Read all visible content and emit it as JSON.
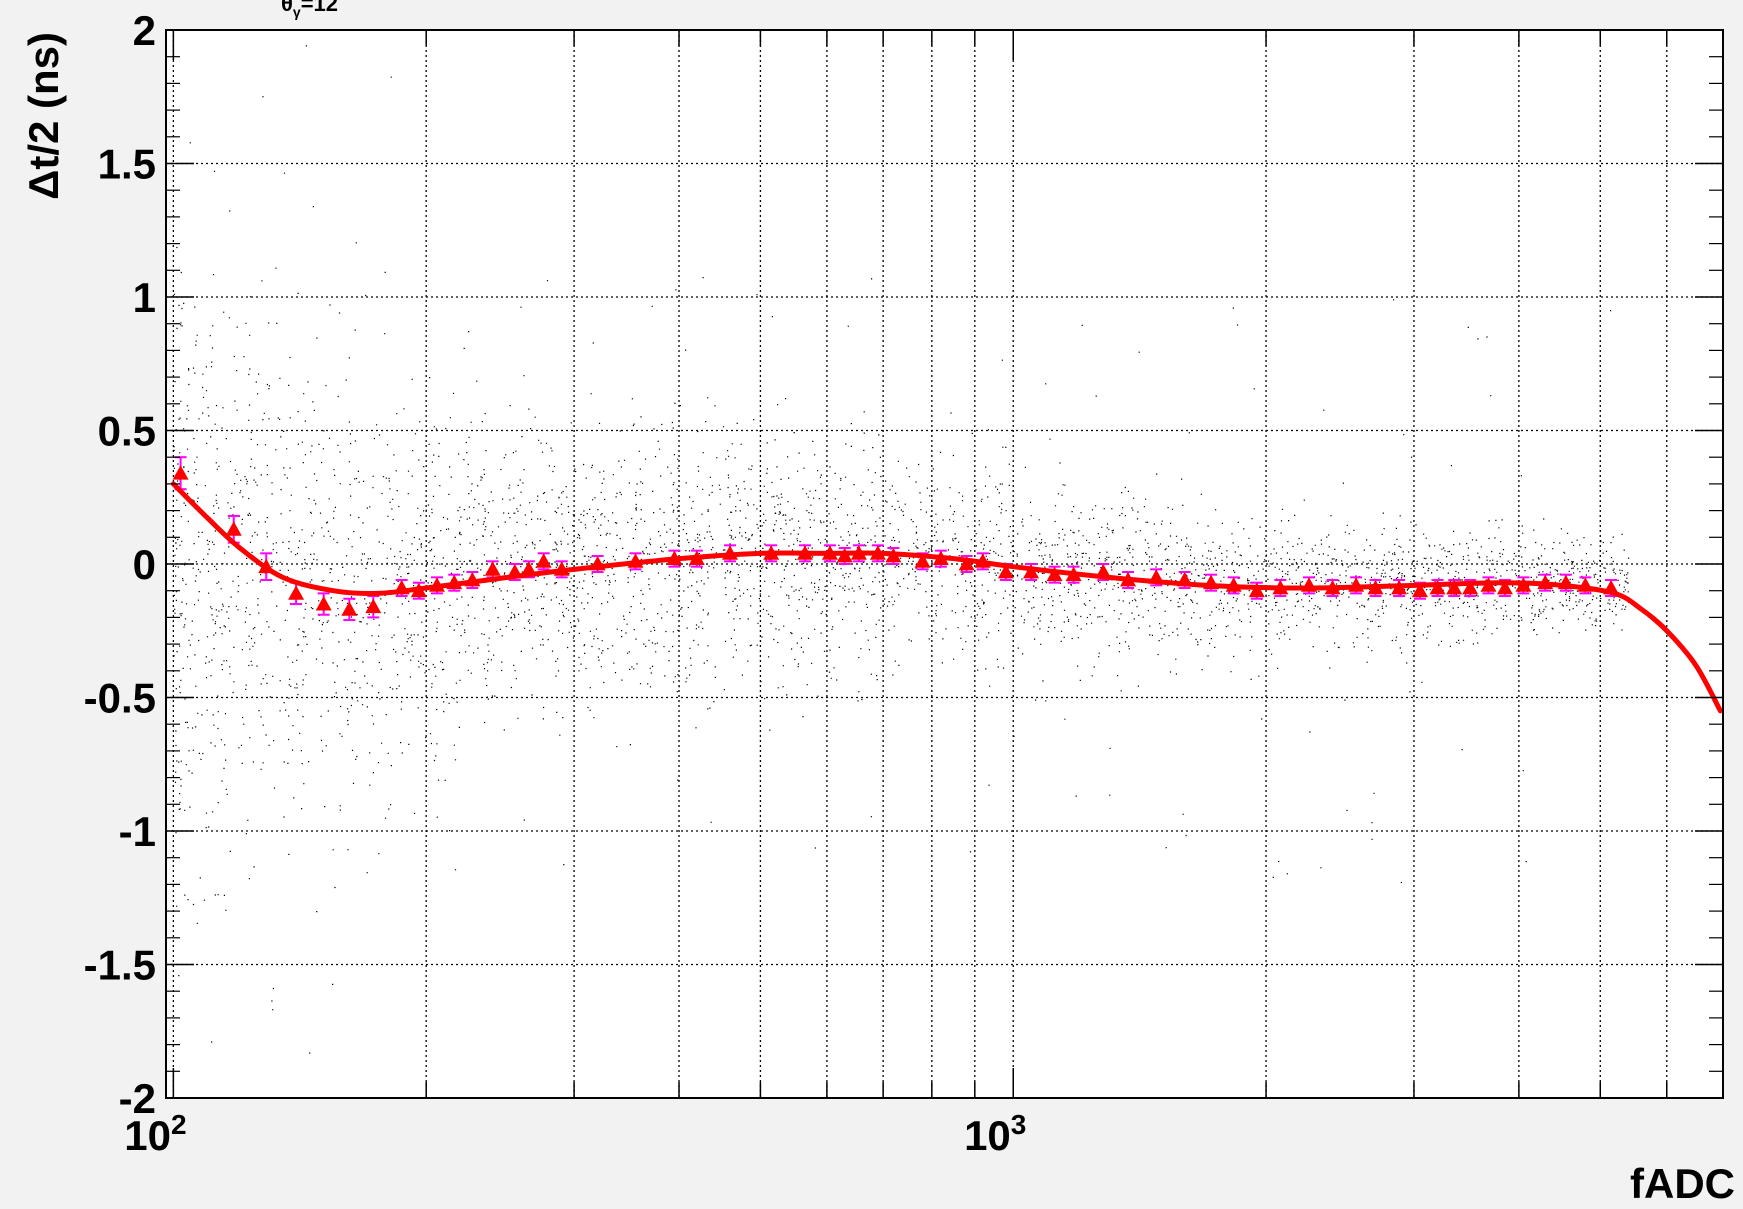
{
  "chart_data": {
    "type": "scatter",
    "title": "",
    "corner_label": "θ",
    "corner_label_sub": "γ",
    "corner_label_value": "=12",
    "xlabel": "fADC",
    "ylabel": "Δt/2 (ns)",
    "xscale": "log",
    "xlim": [
      98,
      7000
    ],
    "ylim": [
      -2,
      2
    ],
    "grid": true,
    "xticks": [
      {
        "value": 100,
        "base": "10",
        "exp": "2"
      },
      {
        "value": 1000,
        "base": "10",
        "exp": "3"
      }
    ],
    "yticks": [
      {
        "value": 2,
        "label": "2"
      },
      {
        "value": 1.5,
        "label": "1.5"
      },
      {
        "value": 1,
        "label": "1"
      },
      {
        "value": 0.5,
        "label": "0.5"
      },
      {
        "value": 0,
        "label": "0"
      },
      {
        "value": -0.5,
        "label": "-0.5"
      },
      {
        "value": -1,
        "label": "-1"
      },
      {
        "value": -1.5,
        "label": "-1.5"
      },
      {
        "value": -2,
        "label": "-2"
      }
    ],
    "colors": {
      "background": "#f2f2f2",
      "plot_area": "#ffffff",
      "scatter": "#000000",
      "markers": "#ff0000",
      "error_bars": "#ff00ff",
      "fit": "#ff0000"
    },
    "series": [
      {
        "name": "",
        "kind": "profile",
        "marker": "triangle",
        "points": [
          {
            "x": 102,
            "y": 0.34,
            "err": 0.06
          },
          {
            "x": 118,
            "y": 0.13,
            "err": 0.05
          },
          {
            "x": 129,
            "y": -0.01,
            "err": 0.05
          },
          {
            "x": 140,
            "y": -0.11,
            "err": 0.04
          },
          {
            "x": 151,
            "y": -0.15,
            "err": 0.04
          },
          {
            "x": 162,
            "y": -0.17,
            "err": 0.04
          },
          {
            "x": 173,
            "y": -0.16,
            "err": 0.04
          },
          {
            "x": 187,
            "y": -0.09,
            "err": 0.03
          },
          {
            "x": 196,
            "y": -0.1,
            "err": 0.03
          },
          {
            "x": 206,
            "y": -0.08,
            "err": 0.03
          },
          {
            "x": 216,
            "y": -0.07,
            "err": 0.03
          },
          {
            "x": 227,
            "y": -0.06,
            "err": 0.03
          },
          {
            "x": 240,
            "y": -0.02,
            "err": 0.03
          },
          {
            "x": 255,
            "y": -0.03,
            "err": 0.03
          },
          {
            "x": 265,
            "y": -0.02,
            "err": 0.03
          },
          {
            "x": 276,
            "y": 0.01,
            "err": 0.03
          },
          {
            "x": 290,
            "y": -0.02,
            "err": 0.03
          },
          {
            "x": 320,
            "y": 0.0,
            "err": 0.03
          },
          {
            "x": 355,
            "y": 0.01,
            "err": 0.03
          },
          {
            "x": 395,
            "y": 0.02,
            "err": 0.03
          },
          {
            "x": 420,
            "y": 0.02,
            "err": 0.03
          },
          {
            "x": 460,
            "y": 0.04,
            "err": 0.03
          },
          {
            "x": 515,
            "y": 0.04,
            "err": 0.03
          },
          {
            "x": 565,
            "y": 0.04,
            "err": 0.03
          },
          {
            "x": 605,
            "y": 0.04,
            "err": 0.03
          },
          {
            "x": 630,
            "y": 0.03,
            "err": 0.03
          },
          {
            "x": 655,
            "y": 0.04,
            "err": 0.03
          },
          {
            "x": 690,
            "y": 0.04,
            "err": 0.03
          },
          {
            "x": 720,
            "y": 0.03,
            "err": 0.03
          },
          {
            "x": 780,
            "y": 0.01,
            "err": 0.03
          },
          {
            "x": 820,
            "y": 0.02,
            "err": 0.03
          },
          {
            "x": 880,
            "y": 0.0,
            "err": 0.03
          },
          {
            "x": 920,
            "y": 0.01,
            "err": 0.03
          },
          {
            "x": 980,
            "y": -0.03,
            "err": 0.03
          },
          {
            "x": 1050,
            "y": -0.03,
            "err": 0.03
          },
          {
            "x": 1120,
            "y": -0.04,
            "err": 0.03
          },
          {
            "x": 1180,
            "y": -0.04,
            "err": 0.03
          },
          {
            "x": 1280,
            "y": -0.03,
            "err": 0.03
          },
          {
            "x": 1370,
            "y": -0.06,
            "err": 0.03
          },
          {
            "x": 1480,
            "y": -0.05,
            "err": 0.03
          },
          {
            "x": 1600,
            "y": -0.06,
            "err": 0.03
          },
          {
            "x": 1720,
            "y": -0.07,
            "err": 0.03
          },
          {
            "x": 1830,
            "y": -0.08,
            "err": 0.03
          },
          {
            "x": 1950,
            "y": -0.1,
            "err": 0.03
          },
          {
            "x": 2080,
            "y": -0.09,
            "err": 0.03
          },
          {
            "x": 2250,
            "y": -0.08,
            "err": 0.03
          },
          {
            "x": 2400,
            "y": -0.09,
            "err": 0.03
          },
          {
            "x": 2560,
            "y": -0.08,
            "err": 0.03
          },
          {
            "x": 2700,
            "y": -0.09,
            "err": 0.03
          },
          {
            "x": 2880,
            "y": -0.09,
            "err": 0.03
          },
          {
            "x": 3050,
            "y": -0.1,
            "err": 0.03
          },
          {
            "x": 3200,
            "y": -0.09,
            "err": 0.03
          },
          {
            "x": 3350,
            "y": -0.09,
            "err": 0.03
          },
          {
            "x": 3500,
            "y": -0.09,
            "err": 0.03
          },
          {
            "x": 3680,
            "y": -0.08,
            "err": 0.03
          },
          {
            "x": 3850,
            "y": -0.09,
            "err": 0.03
          },
          {
            "x": 4050,
            "y": -0.08,
            "err": 0.03
          },
          {
            "x": 4300,
            "y": -0.07,
            "err": 0.03
          },
          {
            "x": 4550,
            "y": -0.07,
            "err": 0.03
          },
          {
            "x": 4800,
            "y": -0.08,
            "err": 0.03
          },
          {
            "x": 5150,
            "y": -0.09,
            "err": 0.03
          }
        ]
      },
      {
        "name": "",
        "kind": "fit",
        "points": [
          {
            "x": 100,
            "y": 0.3
          },
          {
            "x": 110,
            "y": 0.17
          },
          {
            "x": 120,
            "y": 0.06
          },
          {
            "x": 135,
            "y": -0.05
          },
          {
            "x": 155,
            "y": -0.1
          },
          {
            "x": 175,
            "y": -0.11
          },
          {
            "x": 200,
            "y": -0.09
          },
          {
            "x": 250,
            "y": -0.05
          },
          {
            "x": 300,
            "y": -0.02
          },
          {
            "x": 400,
            "y": 0.02
          },
          {
            "x": 500,
            "y": 0.04
          },
          {
            "x": 600,
            "y": 0.04
          },
          {
            "x": 700,
            "y": 0.04
          },
          {
            "x": 850,
            "y": 0.02
          },
          {
            "x": 1000,
            "y": -0.01
          },
          {
            "x": 1300,
            "y": -0.05
          },
          {
            "x": 1700,
            "y": -0.08
          },
          {
            "x": 2200,
            "y": -0.09
          },
          {
            "x": 3000,
            "y": -0.08
          },
          {
            "x": 3800,
            "y": -0.07
          },
          {
            "x": 4500,
            "y": -0.08
          },
          {
            "x": 5200,
            "y": -0.11
          },
          {
            "x": 5600,
            "y": -0.17
          },
          {
            "x": 6000,
            "y": -0.25
          },
          {
            "x": 6500,
            "y": -0.38
          },
          {
            "x": 6950,
            "y": -0.55
          }
        ]
      },
      {
        "name": "",
        "kind": "scatter_density",
        "bands": [
          {
            "x": 100,
            "mean": 0.0,
            "spread": 0.6
          },
          {
            "x": 150,
            "mean": -0.1,
            "spread": 0.45
          },
          {
            "x": 250,
            "mean": -0.05,
            "spread": 0.28
          },
          {
            "x": 500,
            "mean": 0.03,
            "spread": 0.22
          },
          {
            "x": 1000,
            "mean": -0.02,
            "spread": 0.18
          },
          {
            "x": 2000,
            "mean": -0.08,
            "spread": 0.13
          },
          {
            "x": 3000,
            "mean": -0.08,
            "spread": 0.11
          },
          {
            "x": 5300,
            "mean": -0.08,
            "spread": 0.08
          }
        ]
      }
    ]
  }
}
